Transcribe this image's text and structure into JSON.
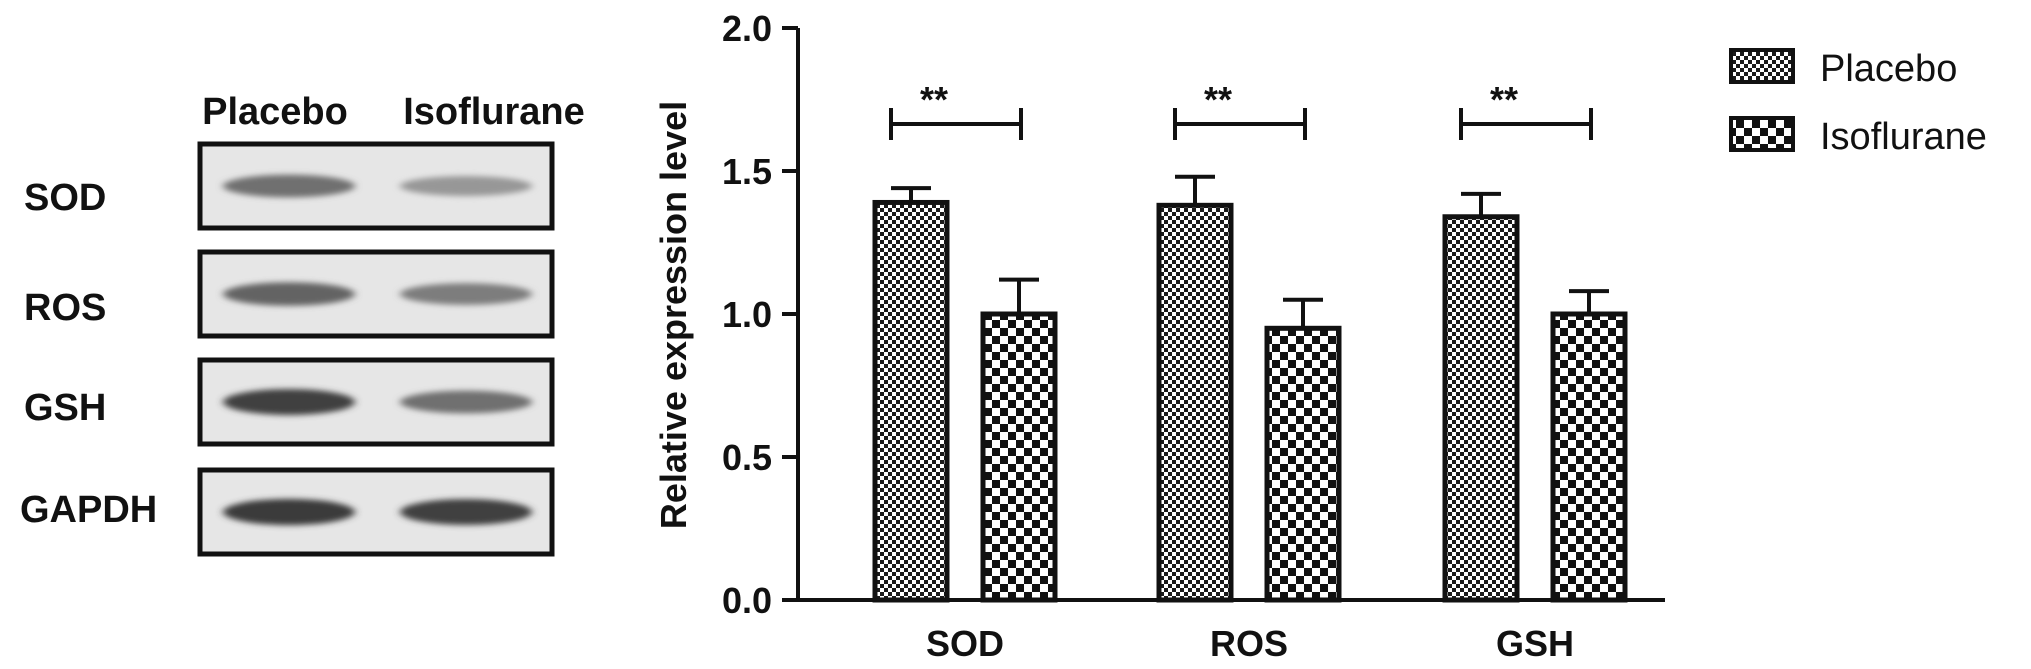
{
  "blot": {
    "column_labels": [
      "Placebo",
      "Isoflurane"
    ],
    "rows": [
      {
        "label": "SOD",
        "intensity": [
          0.62,
          0.42
        ]
      },
      {
        "label": "ROS",
        "intensity": [
          0.68,
          0.55
        ]
      },
      {
        "label": "GSH",
        "intensity": [
          0.85,
          0.62
        ]
      },
      {
        "label": "GAPDH",
        "intensity": [
          0.88,
          0.85
        ]
      }
    ]
  },
  "chart_data": {
    "type": "bar",
    "categories": [
      "SOD",
      "ROS",
      "GSH"
    ],
    "series": [
      {
        "name": "Placebo",
        "values": [
          1.39,
          1.38,
          1.34
        ],
        "errors": [
          0.05,
          0.1,
          0.08
        ],
        "pattern": "fine-check"
      },
      {
        "name": "Isoflurane",
        "values": [
          1.0,
          0.95,
          1.0
        ],
        "errors": [
          0.12,
          0.1,
          0.08
        ],
        "pattern": "coarse-check"
      }
    ],
    "ylabel": "Relative expression level",
    "xlabel": "",
    "ylim": [
      0,
      2.0
    ],
    "yticks": [
      "0.0",
      "0.5",
      "1.0",
      "1.5",
      "2.0"
    ],
    "significance": [
      "**",
      "**",
      "**"
    ],
    "legend_position": "top-right",
    "grid": false
  }
}
